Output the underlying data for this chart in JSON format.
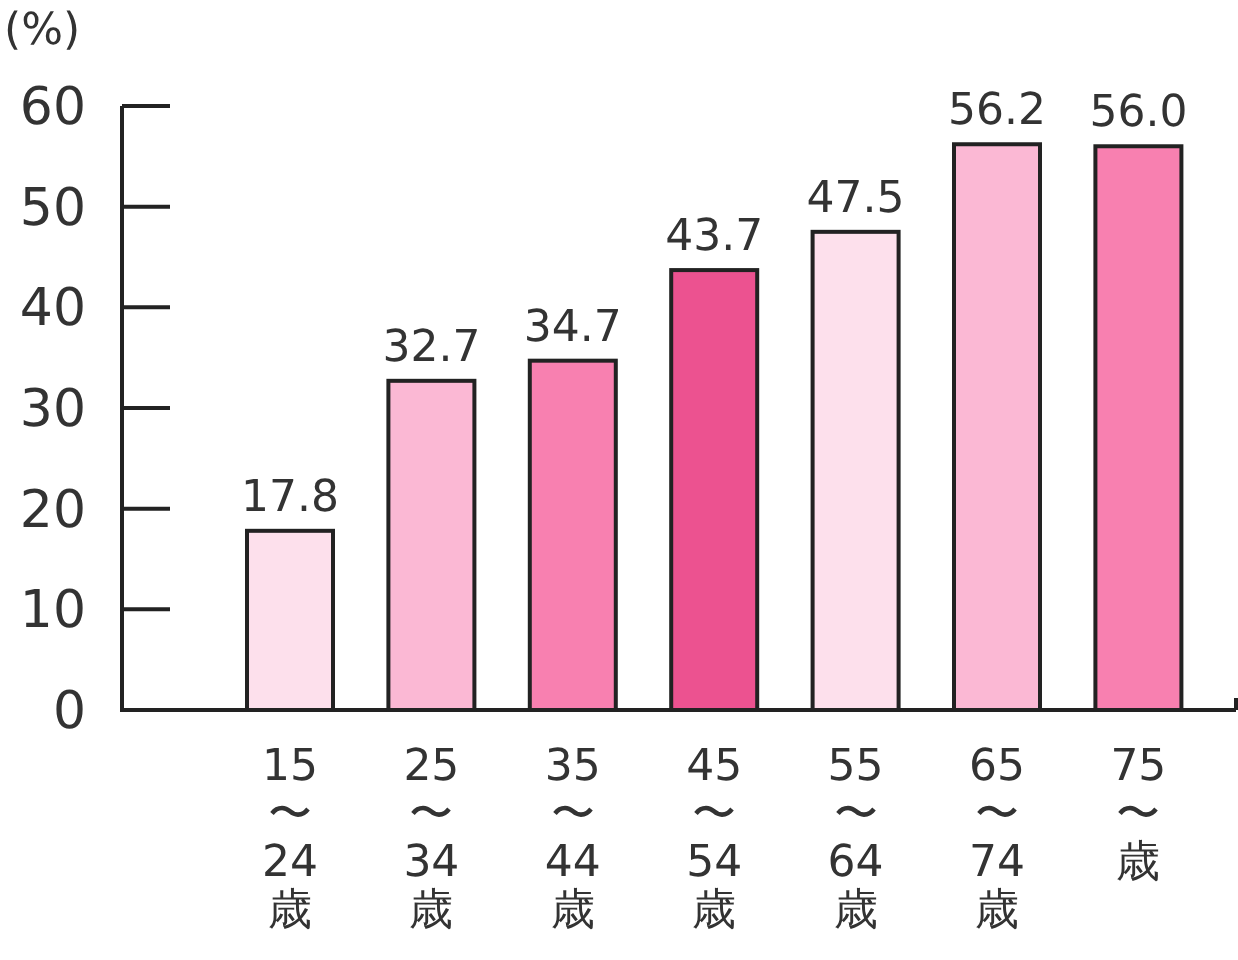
{
  "chart_data": {
    "type": "bar",
    "ylabel": "(%)",
    "categories": [
      "15〜24歳",
      "25〜34歳",
      "35〜44歳",
      "45〜54歳",
      "55〜64歳",
      "65〜74歳",
      "75〜歳"
    ],
    "values": [
      17.8,
      32.7,
      34.7,
      43.7,
      47.5,
      56.2,
      56.0
    ],
    "colors": [
      "#fde0ec",
      "#fbb8d4",
      "#f880b0",
      "#ec5290",
      "#fde0ec",
      "#fbb8d4",
      "#f880b0"
    ],
    "value_labels": [
      "17.8",
      "32.7",
      "34.7",
      "43.7",
      "47.5",
      "56.2",
      "56.0"
    ],
    "ylim": [
      0,
      60
    ],
    "yticks": [
      0,
      10,
      20,
      30,
      40,
      50,
      60
    ],
    "grid": false
  }
}
